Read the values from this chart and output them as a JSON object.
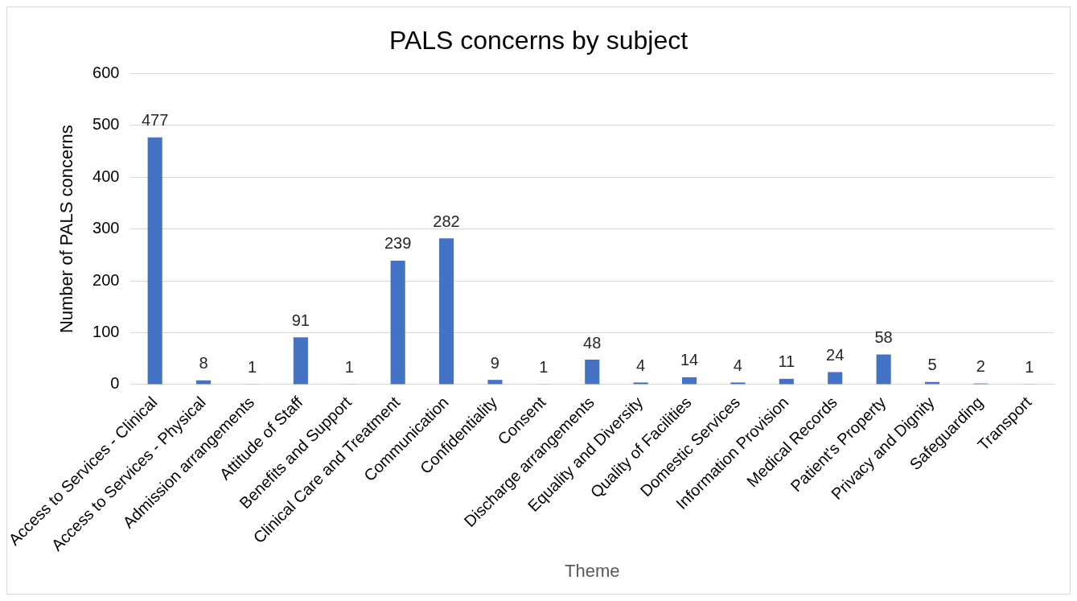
{
  "chart_data": {
    "type": "bar",
    "title": "PALS concerns by subject",
    "xlabel": "Theme",
    "ylabel": "Number of PALS concerns",
    "categories": [
      "Access to Services - Clinical",
      "Access to Services - Physical",
      "Admission arrangements",
      "Attitude of Staff",
      "Benefits and Support",
      "Clinical Care and Treatment",
      "Communication",
      "Confidentiality",
      "Consent",
      "Discharge arrangements",
      "Equality and Diversity",
      "Quality of Facilities",
      "Domestic Services",
      "Information Provision",
      "Medical Records",
      "Patient's Property",
      "Privacy and Dignity",
      "Safeguarding",
      "Transport"
    ],
    "values": [
      477,
      8,
      1,
      91,
      1,
      239,
      282,
      9,
      1,
      48,
      4,
      14,
      4,
      11,
      24,
      58,
      5,
      2,
      1
    ],
    "color": "#4472c4",
    "ylim": [
      0,
      600
    ],
    "yticks": [
      0,
      100,
      200,
      300,
      400,
      500,
      600
    ],
    "grid": "y",
    "data_labels": true,
    "legend": false
  }
}
